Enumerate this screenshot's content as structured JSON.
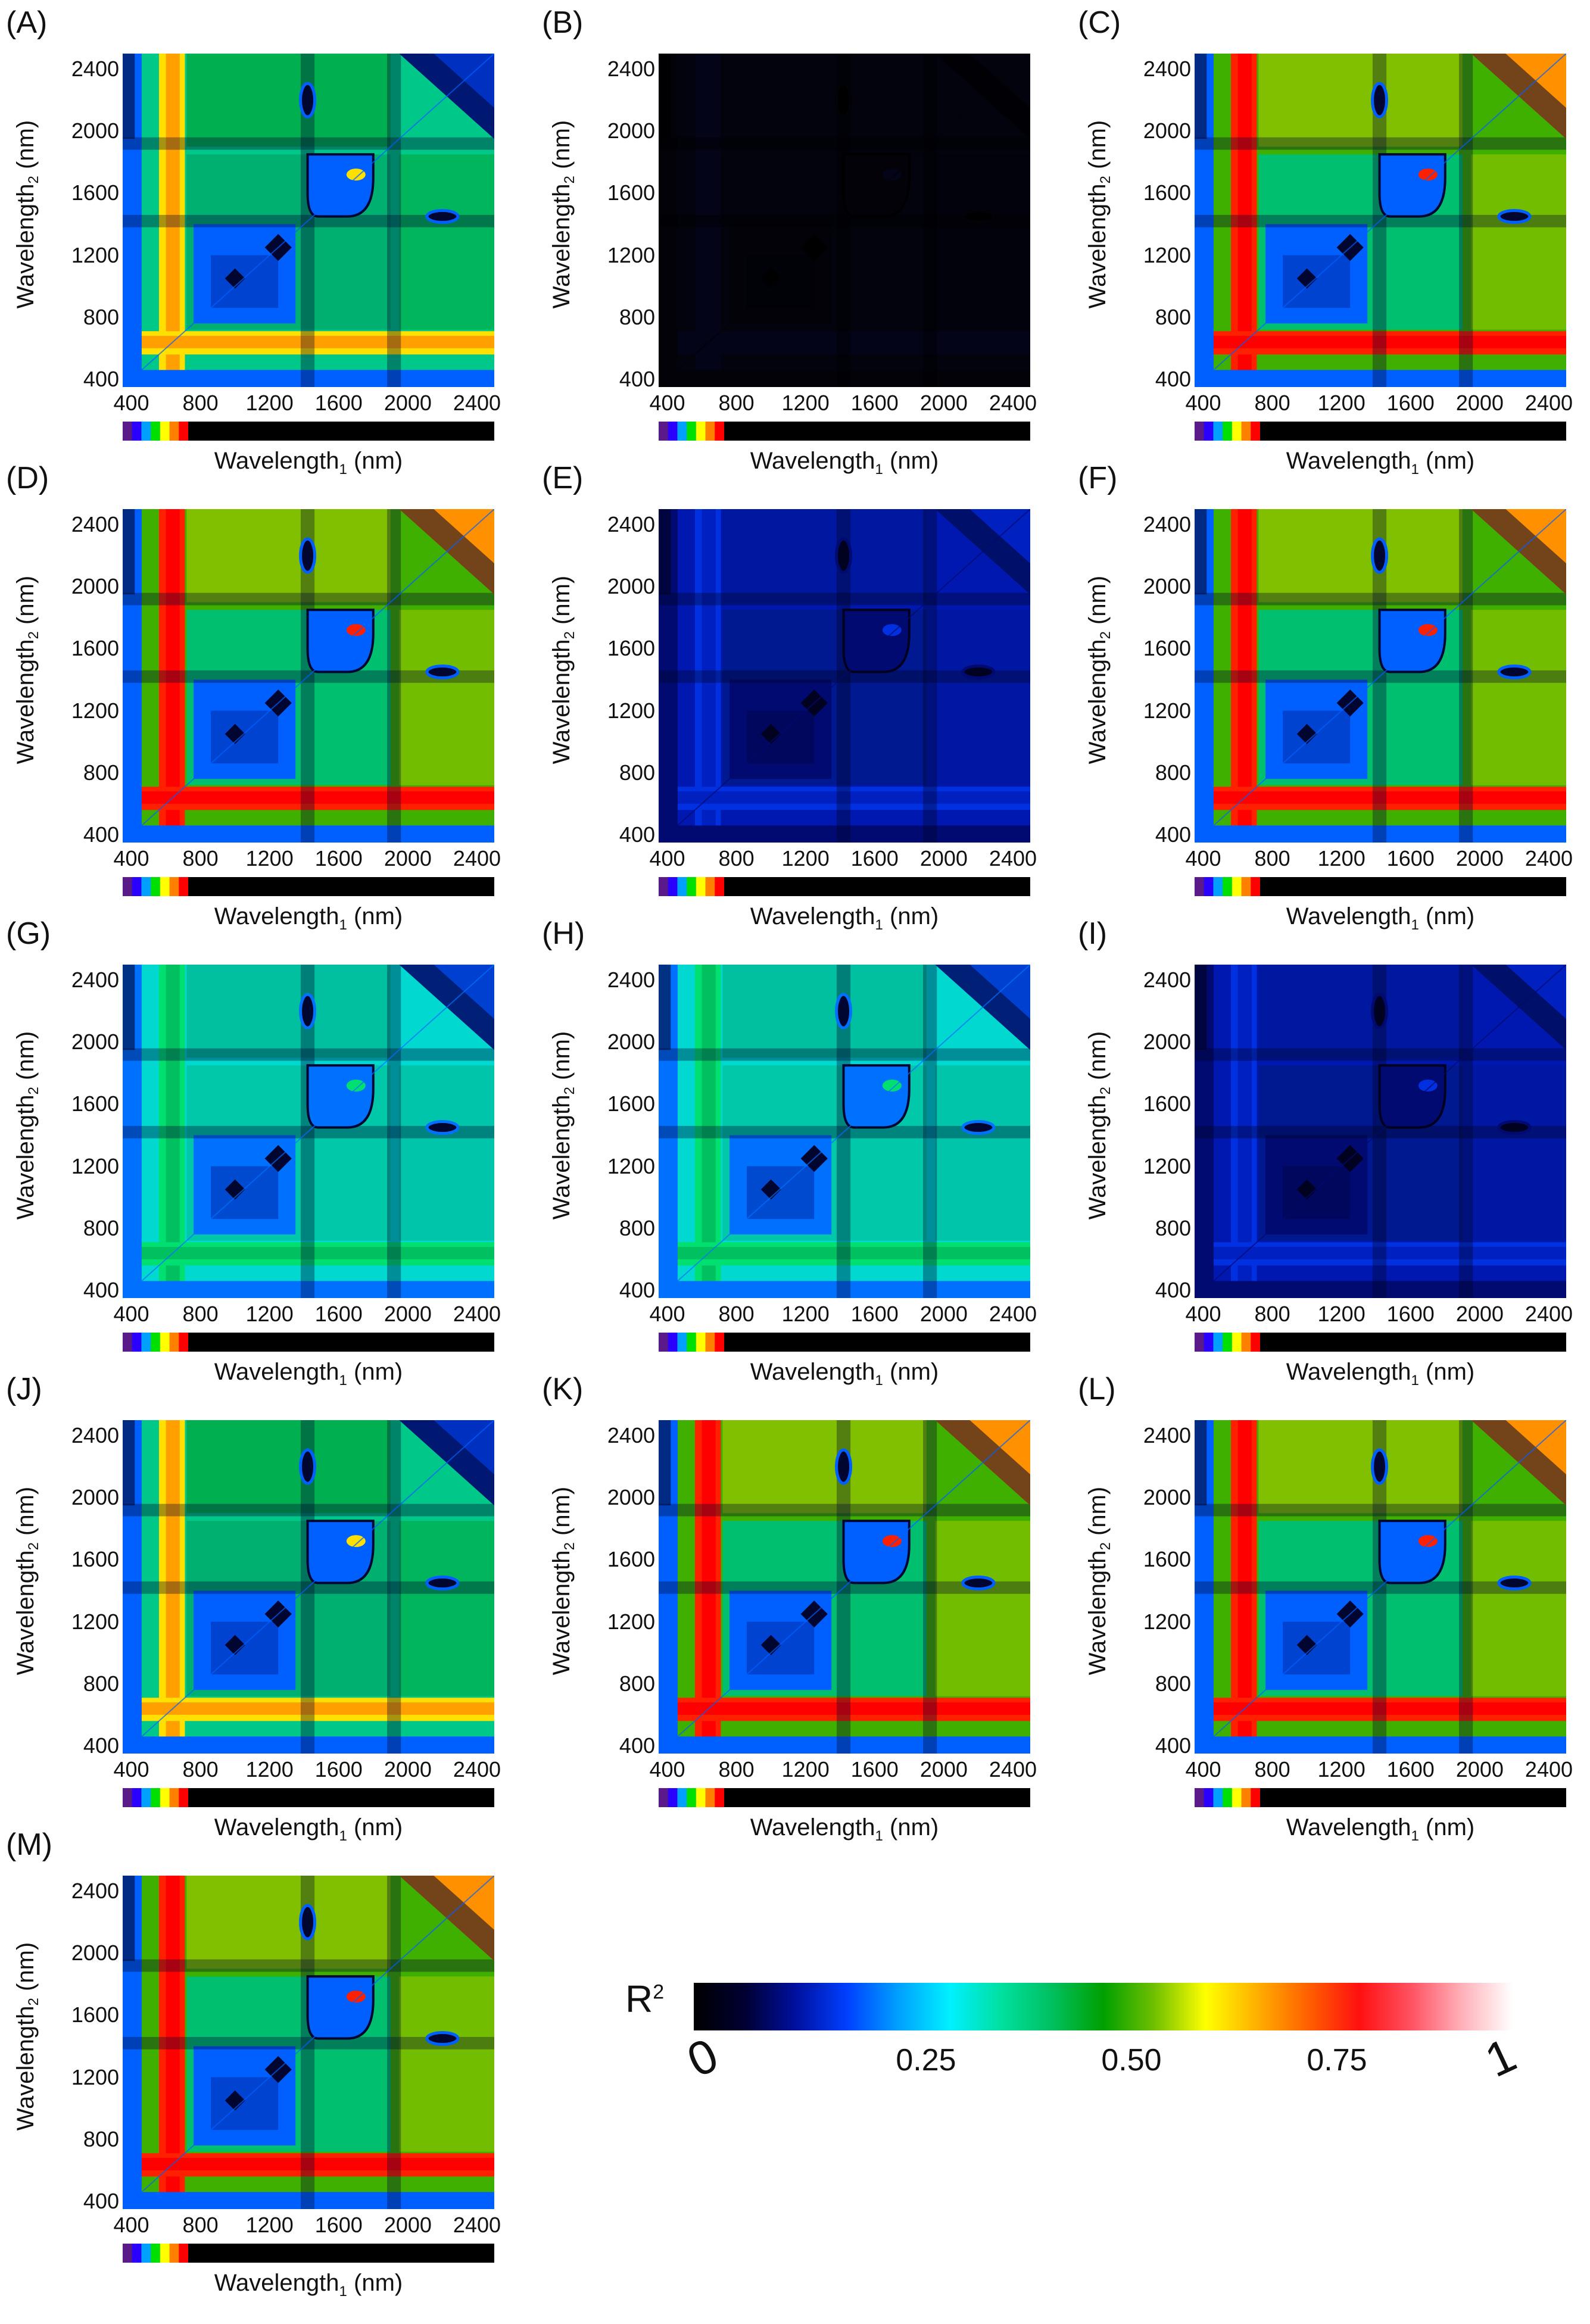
{
  "panels": [
    {
      "letter": "(A)",
      "scheme": "mid"
    },
    {
      "letter": "(B)",
      "scheme": "black"
    },
    {
      "letter": "(C)",
      "scheme": "high"
    },
    {
      "letter": "(D)",
      "scheme": "high"
    },
    {
      "letter": "(E)",
      "scheme": "darkblue"
    },
    {
      "letter": "(F)",
      "scheme": "high"
    },
    {
      "letter": "(G)",
      "scheme": "cyan"
    },
    {
      "letter": "(H)",
      "scheme": "cyan"
    },
    {
      "letter": "(I)",
      "scheme": "darkblue"
    },
    {
      "letter": "(J)",
      "scheme": "mid"
    },
    {
      "letter": "(K)",
      "scheme": "high"
    },
    {
      "letter": "(L)",
      "scheme": "high"
    },
    {
      "letter": "(M)",
      "scheme": "high"
    }
  ],
  "axis": {
    "ylabel_main": "Wavelength",
    "ylabel_sub": "2",
    "ylabel_unit": " (nm)",
    "xlabel_main": "Wavelength",
    "xlabel_sub": "1",
    "xlabel_unit": " (nm)",
    "yticks": [
      "2400",
      "2000",
      "1600",
      "1200",
      "800",
      "400"
    ],
    "xticks": [
      "400",
      "800",
      "1200",
      "1600",
      "2000",
      "2400"
    ]
  },
  "colorbar": {
    "title": "R",
    "title_sup": "2",
    "ticks": [
      "0",
      "0.25",
      "0.50",
      "0.75",
      "1"
    ],
    "stops": [
      "#000000",
      "#000033",
      "#0010a0",
      "#0040ff",
      "#00a0ff",
      "#00f0ff",
      "#00e0a0",
      "#00c060",
      "#00a000",
      "#70c000",
      "#ffff00",
      "#ffb000",
      "#ff6000",
      "#ff1010",
      "#ff5060",
      "#ffb0b8",
      "#ffffff"
    ]
  },
  "chart_data": {
    "type": "heatmap",
    "x_label": "Wavelength1 (nm)",
    "y_label": "Wavelength2 (nm)",
    "xlim": [
      350,
      2500
    ],
    "ylim": [
      350,
      2500
    ],
    "value_label": "R2",
    "value_range": [
      0,
      1
    ],
    "panels": [
      "(A)",
      "(B)",
      "(C)",
      "(D)",
      "(E)",
      "(F)",
      "(G)",
      "(H)",
      "(I)",
      "(J)",
      "(K)",
      "(L)",
      "(M)"
    ]
  }
}
